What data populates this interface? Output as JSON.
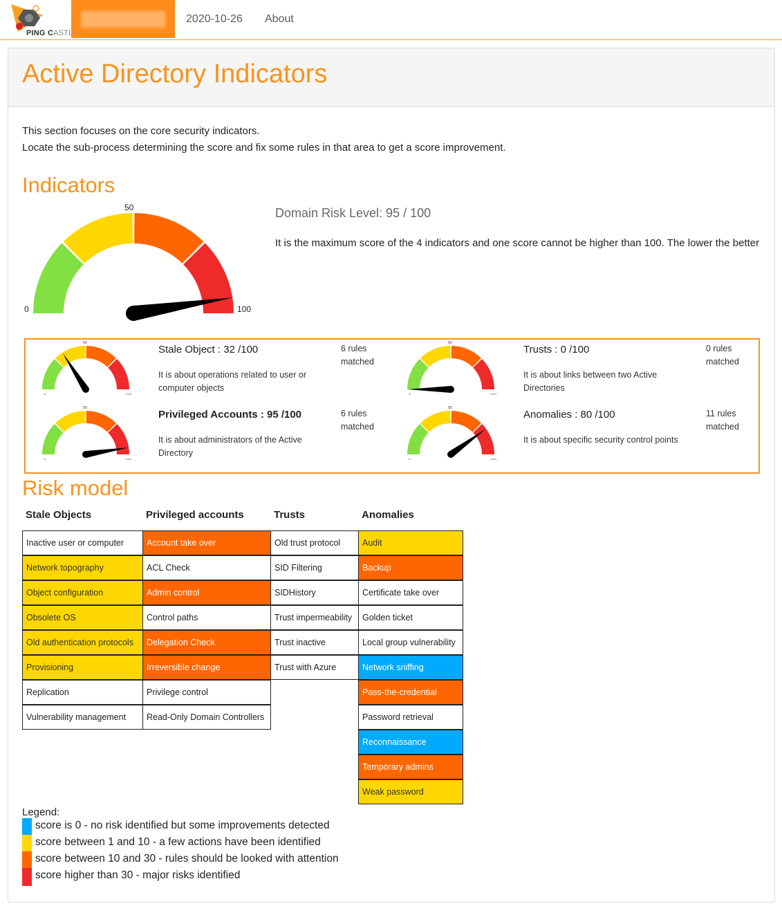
{
  "navbar": {
    "brand_main": "PING C",
    "brand_rest": "ASTLE",
    "date_link": "2020-10-26",
    "about_link": "About"
  },
  "page": {
    "title": "Active Directory Indicators",
    "intro_line1": "This section focuses on the core security indicators.",
    "intro_line2": "Locate the sub-process determining the score and fix some rules in that area to get a score improvement."
  },
  "indicators_section": {
    "heading": "Indicators",
    "main_gauge": {
      "value": 95,
      "min_label": "0",
      "mid_label": "50",
      "max_label": "100"
    },
    "risk_level": "Domain Risk Level: 95 / 100",
    "risk_description": "It is the maximum score of the 4 indicators and one score cannot be higher than 100. The lower the better"
  },
  "indicators": [
    {
      "title": "Stale Object : 32 /100",
      "score": 32,
      "bold": false,
      "description": "It is about operations related to user or computer objects",
      "rules_line1": "6 rules",
      "rules_line2": "matched"
    },
    {
      "title": "Trusts : 0 /100",
      "score": 0,
      "bold": false,
      "description": "It is about links between two Active Directories",
      "rules_line1": "0 rules",
      "rules_line2": "matched"
    },
    {
      "title": "Privileged Accounts : 95 /100",
      "score": 95,
      "bold": true,
      "description": "It is about administrators of the Active Directory",
      "rules_line1": "6 rules",
      "rules_line2": "matched"
    },
    {
      "title": "Anomalies : 80 /100",
      "score": 80,
      "bold": false,
      "description": "It is about specific security control points",
      "rules_line1": "11 rules",
      "rules_line2": "matched"
    }
  ],
  "mini_gauge_labels": {
    "min": "0",
    "mid": "50",
    "max": "100"
  },
  "risk_model": {
    "heading": "Risk model",
    "columns": [
      {
        "header": "Stale Objects",
        "cells": [
          {
            "label": "Inactive user or computer",
            "level": "white"
          },
          {
            "label": "Network topography",
            "level": "yellow"
          },
          {
            "label": "Object configuration",
            "level": "yellow"
          },
          {
            "label": "Obsolete OS",
            "level": "yellow"
          },
          {
            "label": "Old authentication protocols",
            "level": "yellow"
          },
          {
            "label": "Provisioning",
            "level": "yellow"
          },
          {
            "label": "Replication",
            "level": "white"
          },
          {
            "label": "Vulnerability management",
            "level": "white"
          }
        ]
      },
      {
        "header": "Privileged accounts",
        "cells": [
          {
            "label": "Account take over",
            "level": "orange"
          },
          {
            "label": "ACL Check",
            "level": "white"
          },
          {
            "label": "Admin control",
            "level": "orange"
          },
          {
            "label": "Control paths",
            "level": "white"
          },
          {
            "label": "Delegation Check",
            "level": "orange"
          },
          {
            "label": "Irreversible change",
            "level": "orange"
          },
          {
            "label": "Privilege control",
            "level": "white"
          },
          {
            "label": "Read-Only Domain Controllers",
            "level": "white"
          }
        ]
      },
      {
        "header": "Trusts",
        "cells": [
          {
            "label": "Old trust protocol",
            "level": "white"
          },
          {
            "label": "SID Filtering",
            "level": "white"
          },
          {
            "label": "SIDHistory",
            "level": "white"
          },
          {
            "label": "Trust impermeability",
            "level": "white"
          },
          {
            "label": "Trust inactive",
            "level": "white"
          },
          {
            "label": "Trust with Azure",
            "level": "white"
          }
        ]
      },
      {
        "header": "Anomalies",
        "cells": [
          {
            "label": "Audit",
            "level": "yellow"
          },
          {
            "label": "Backup",
            "level": "orange"
          },
          {
            "label": "Certificate take over",
            "level": "white"
          },
          {
            "label": "Golden ticket",
            "level": "white"
          },
          {
            "label": "Local group vulnerability",
            "level": "white"
          },
          {
            "label": "Network sniffing",
            "level": "blue"
          },
          {
            "label": "Pass-the-credential",
            "level": "orange"
          },
          {
            "label": "Password retrieval",
            "level": "white"
          },
          {
            "label": "Reconnaissance",
            "level": "blue"
          },
          {
            "label": "Temporary admins",
            "level": "orange"
          },
          {
            "label": "Weak password",
            "level": "yellow"
          }
        ]
      }
    ]
  },
  "legend": {
    "title": "Legend:",
    "items": [
      {
        "color": "#00aaff",
        "text": "score is 0 - no risk identified but some improvements detected"
      },
      {
        "color": "#ffd700",
        "text": "score between 1 and 10 - a few actions have been identified"
      },
      {
        "color": "#ff6600",
        "text": "score between 10 and 30 - rules should be looked with attention"
      },
      {
        "color": "#ee2a2a",
        "text": "score higher than 30 - major risks identified"
      }
    ]
  },
  "gauge_colors": [
    "#83e043",
    "#ffd700",
    "#ff6600",
    "#ee2a2a"
  ]
}
